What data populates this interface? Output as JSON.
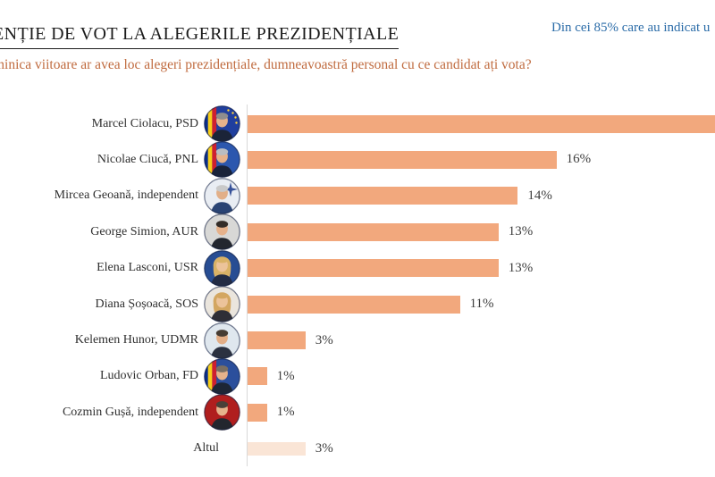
{
  "header": {
    "title": "ENȚIE DE VOT LA ALEGERILE PREZIDENȚIALE",
    "title_clipped_at_left": true,
    "title_color": "#1b1b1b",
    "note": "Din cei 85% care au indicat u",
    "note_clipped_at_right": true,
    "note_color": "#2b6ca8",
    "question": "minica viitoare ar avea loc alegeri prezidențiale, dumneavoastră personal cu ce candidat ați vota?",
    "question_clipped_at_left": true,
    "question_color": "#c06b3f"
  },
  "chart_data": {
    "type": "bar",
    "orientation": "horizontal",
    "unit": "%",
    "categories": [
      "Marcel Ciolacu, PSD",
      "Nicolae Ciucă, PNL",
      "Mircea Geoană, independent",
      "George Simion, AUR",
      "Elena Lasconi, USR",
      "Diana Șoșoacă, SOS",
      "Kelemen Hunor, UDMR",
      "Ludovic Orban, FD",
      "Cozmin Gușă, independent",
      "Altul"
    ],
    "values": [
      24,
      16,
      14,
      13,
      13,
      11,
      3,
      1,
      1,
      3
    ],
    "value_labels": [
      "",
      "16%",
      "14%",
      "13%",
      "13%",
      "11%",
      "3%",
      "1%",
      "1%",
      "3%"
    ],
    "notes": {
      "first_bar_clipped_at_right_edge": true,
      "first_bar_value_estimated": true,
      "muted_category": "Altul"
    },
    "colors": {
      "bar": "#F2A87D",
      "muted_bar": "#FAE5D6",
      "axis_line": "#D9D9D9",
      "value_label": "#3E3E3E",
      "category_label": "#2F2F2F"
    },
    "legend": "none",
    "grid": "off"
  },
  "avatars": [
    {
      "name": "avatar-marcel-ciolacu",
      "bg": "#203f9e",
      "flag": true,
      "emblem": "eu-stars",
      "hair": "#8e8e8e",
      "hairStyle": "short",
      "suit": "#1b2438",
      "skin": "#e6b28b"
    },
    {
      "name": "avatar-nicolae-ciuca",
      "bg": "#2c57ae",
      "flag": true,
      "emblem": "",
      "hair": "#b9bdc2",
      "hairStyle": "short",
      "suit": "#19233a",
      "skin": "#e6b28b"
    },
    {
      "name": "avatar-mircea-geoana",
      "bg": "#e9edf3",
      "flag": false,
      "emblem": "nato",
      "hair": "#c9c9c9",
      "hairStyle": "short",
      "suit": "#2a4474",
      "skin": "#e2af88"
    },
    {
      "name": "avatar-george-simion",
      "bg": "#d8d8d6",
      "flag": false,
      "emblem": "",
      "hair": "#332d28",
      "hairStyle": "short",
      "suit": "#23272f",
      "skin": "#e6b28b"
    },
    {
      "name": "avatar-elena-lasconi",
      "bg": "#274d93",
      "flag": false,
      "emblem": "",
      "hair": "#d9b266",
      "hairStyle": "long",
      "suit": "#232c44",
      "skin": "#ecc39a"
    },
    {
      "name": "avatar-diana-sosoaca",
      "bg": "#eae5dd",
      "flag": false,
      "emblem": "",
      "hair": "#d3a660",
      "hairStyle": "long",
      "suit": "#2e2e36",
      "skin": "#ecc39a"
    },
    {
      "name": "avatar-kelemen-hunor",
      "bg": "#dfe7ee",
      "flag": false,
      "emblem": "",
      "hair": "#463c33",
      "hairStyle": "short",
      "suit": "#2b3140",
      "skin": "#e3ae86"
    },
    {
      "name": "avatar-ludovic-orban",
      "bg": "#2b4f9c",
      "flag": true,
      "emblem": "",
      "hair": "#7a6f63",
      "hairStyle": "short",
      "suit": "#1d2636",
      "skin": "#e6b28b"
    },
    {
      "name": "avatar-cozmin-gusa",
      "bg": "#b01e1e",
      "flag": false,
      "emblem": "",
      "hair": "#4a4038",
      "hairStyle": "short",
      "suit": "#23262e",
      "skin": "#e6b28b"
    }
  ]
}
